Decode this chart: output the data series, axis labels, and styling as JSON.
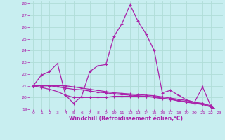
{
  "xlabel": "Windchill (Refroidissement éolien,°C)",
  "background_color": "#c8eef0",
  "grid_color": "#b0ddd8",
  "line_color": "#aa22aa",
  "xlim": [
    -0.5,
    23.5
  ],
  "ylim": [
    19,
    28.2
  ],
  "yticks": [
    19,
    20,
    21,
    22,
    23,
    24,
    25,
    26,
    27,
    28
  ],
  "xticks": [
    0,
    1,
    2,
    3,
    4,
    5,
    6,
    7,
    8,
    9,
    10,
    11,
    12,
    13,
    14,
    15,
    16,
    17,
    18,
    19,
    20,
    21,
    22,
    23
  ],
  "curve1_x": [
    0,
    1,
    2,
    3,
    4,
    5,
    6,
    7,
    8,
    9,
    10,
    11,
    12,
    13,
    14,
    15,
    16,
    17,
    18,
    19,
    20,
    21,
    22,
    23
  ],
  "curve1_y": [
    21.0,
    21.9,
    22.2,
    22.9,
    20.2,
    19.5,
    20.1,
    22.2,
    22.7,
    22.8,
    25.2,
    26.3,
    27.9,
    26.5,
    25.4,
    24.0,
    20.4,
    20.6,
    20.2,
    19.8,
    19.6,
    20.9,
    19.3,
    18.8
  ],
  "curve2_x": [
    0,
    1,
    2,
    3,
    4,
    5,
    6,
    7,
    8,
    9,
    10,
    11,
    12,
    13,
    14,
    15,
    16,
    17,
    18,
    19,
    20,
    21,
    22,
    23
  ],
  "curve2_y": [
    21.0,
    20.85,
    20.7,
    20.5,
    20.2,
    20.0,
    20.0,
    20.0,
    20.0,
    20.0,
    20.1,
    20.1,
    20.1,
    20.1,
    20.1,
    20.0,
    19.9,
    19.85,
    19.7,
    19.6,
    19.5,
    19.5,
    19.2,
    18.8
  ],
  "curve3_x": [
    0,
    1,
    2,
    3,
    4,
    5,
    6,
    7,
    8,
    9,
    10,
    11,
    12,
    13,
    14,
    15,
    16,
    17,
    18,
    19,
    20,
    21,
    22,
    23
  ],
  "curve3_y": [
    21.0,
    21.0,
    21.0,
    21.0,
    21.0,
    20.9,
    20.8,
    20.7,
    20.6,
    20.5,
    20.4,
    20.35,
    20.3,
    20.25,
    20.2,
    20.15,
    20.05,
    19.95,
    19.85,
    19.75,
    19.6,
    19.5,
    19.3,
    18.8
  ],
  "curve4_x": [
    0,
    1,
    2,
    3,
    4,
    5,
    6,
    7,
    8,
    9,
    10,
    11,
    12,
    13,
    14,
    15,
    16,
    17,
    18,
    19,
    20,
    21,
    22,
    23
  ],
  "curve4_y": [
    21.0,
    21.0,
    21.0,
    20.9,
    20.8,
    20.7,
    20.65,
    20.55,
    20.45,
    20.4,
    20.3,
    20.25,
    20.2,
    20.15,
    20.1,
    20.05,
    19.95,
    19.85,
    19.75,
    19.65,
    19.5,
    19.4,
    19.2,
    18.8
  ]
}
